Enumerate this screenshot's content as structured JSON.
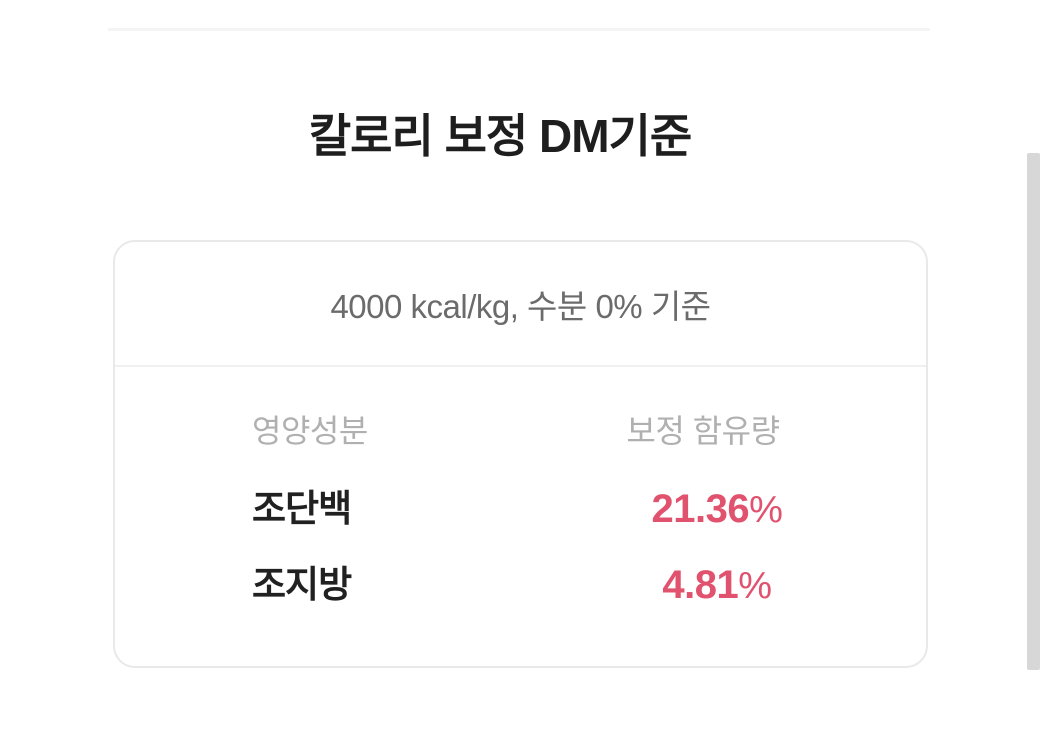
{
  "page": {
    "title": "칼로리 보정 DM기준"
  },
  "card": {
    "subtitle": "4000 kcal/kg, 수분 0% 기준",
    "table": {
      "headers": {
        "nutrient": "영양성분",
        "amount": "보정 함유량"
      },
      "rows": [
        {
          "nutrient": "조단백",
          "value": "21.36",
          "unit": "%"
        },
        {
          "nutrient": "조지방",
          "value": "4.81",
          "unit": "%"
        }
      ]
    }
  },
  "colors": {
    "accent_pink": "#e0526e",
    "text_dark": "#1e1e1e",
    "text_gray": "#6b6b6b",
    "text_light_gray": "#b0b0b0",
    "card_border": "#e9e9e9",
    "divider": "#f0f0f0",
    "scrollbar": "#d7d7d7"
  }
}
